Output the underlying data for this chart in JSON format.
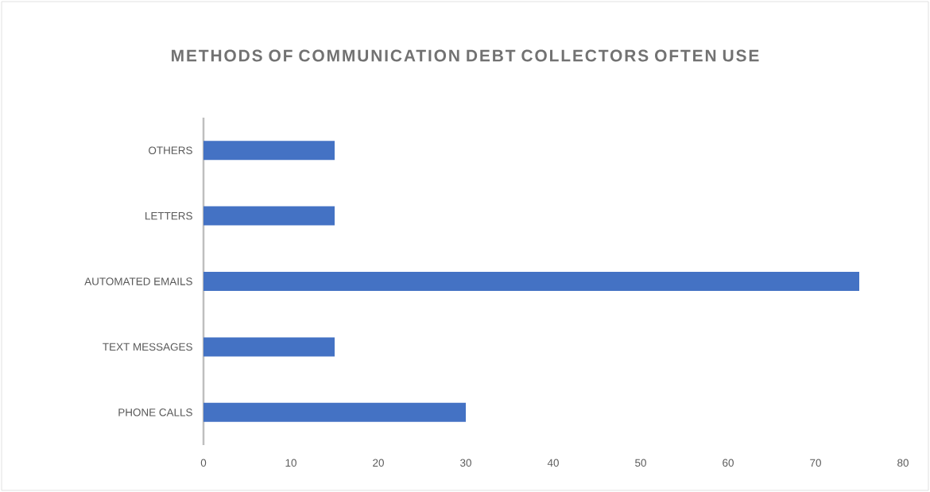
{
  "chart_data": {
    "type": "bar",
    "orientation": "horizontal",
    "title": "METHODS OF COMMUNICATION DEBT COLLECTORS OFTEN USE",
    "categories": [
      "OTHERS",
      "LETTERS",
      "AUTOMATED EMAILS",
      "TEXT MESSAGES",
      "PHONE CALLS"
    ],
    "values": [
      15,
      15,
      75,
      15,
      30
    ],
    "color": "#4472c4",
    "xlim": [
      0,
      80
    ],
    "xticks": [
      0,
      10,
      20,
      30,
      40,
      50,
      60,
      70,
      80
    ]
  }
}
